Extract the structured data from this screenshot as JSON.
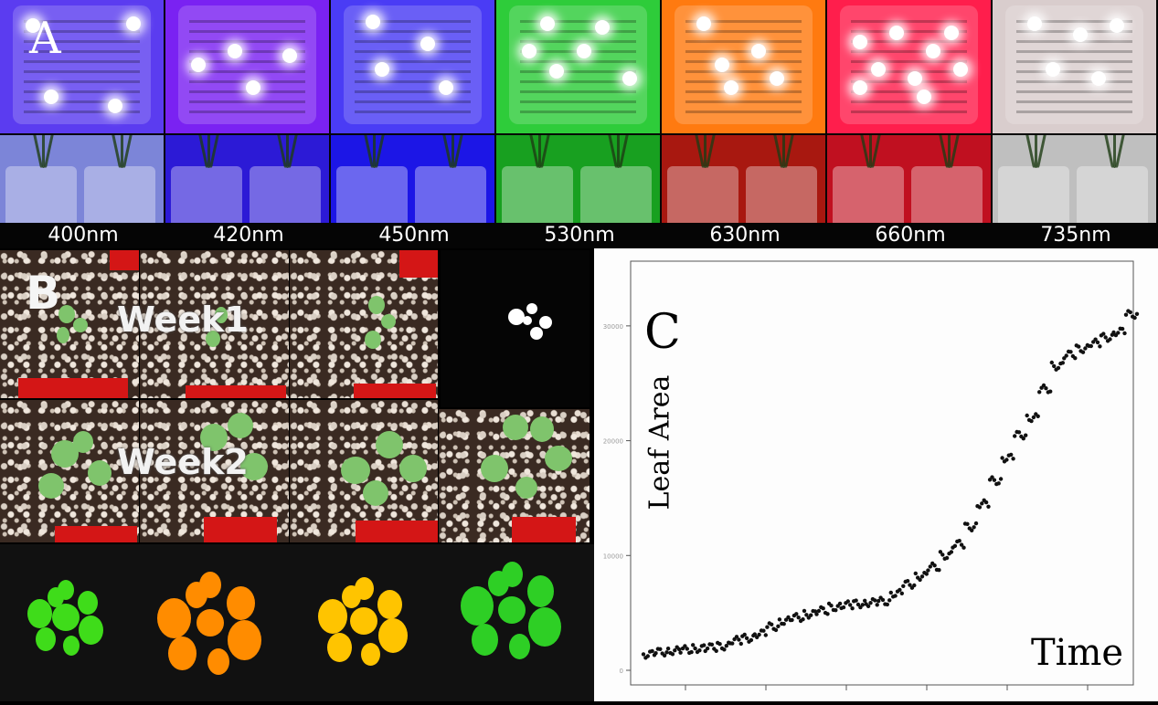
{
  "panel_a": {
    "letter": "A",
    "wavelengths": [
      "400nm",
      "420nm",
      "450nm",
      "530nm",
      "630nm",
      "660nm",
      "735nm"
    ],
    "lamp_colors": [
      "#5b3cf0",
      "#7a22f2",
      "#4a3cf5",
      "#2ecc3a",
      "#ff7a10",
      "#ff1e4c",
      "#d9cdcd"
    ],
    "plant_tints": [
      "#7c85d8",
      "#2c1ad6",
      "#1c16e6",
      "#18a020",
      "#a81810",
      "#c01020",
      "#bfbfbf"
    ]
  },
  "panel_b": {
    "letter": "B",
    "week1_label": "Week1",
    "week2_label": "Week2",
    "colors": {
      "tray": "#d41616",
      "leaf": "#7fc46c",
      "segment_colors": [
        "#3fdc1a",
        "#ff8c00",
        "#ffc400",
        "#2ecf25"
      ]
    }
  },
  "panel_c": {
    "letter": "C",
    "ylabel": "Leaf Area",
    "xlabel": "Time"
  },
  "chart_data": {
    "type": "scatter",
    "title": "",
    "xlabel": "Time",
    "ylabel": "Leaf Area",
    "ylim": [
      0,
      35000
    ],
    "yticks": [
      0,
      10000,
      20000,
      30000
    ],
    "grid": false,
    "series": [
      {
        "values": [
          1400,
          1600,
          1700,
          1800,
          1900,
          2000,
          2100,
          2600,
          2800,
          3200,
          3800,
          4300,
          4600,
          4900,
          5200,
          5500,
          5700,
          5800,
          5900,
          6000,
          6700,
          7500,
          8200,
          9000,
          10000,
          11000,
          12500,
          14500,
          16500,
          18500,
          20500,
          22000,
          24500,
          26500,
          27500,
          28000,
          28500,
          29000,
          29500,
          31000
        ]
      }
    ]
  }
}
